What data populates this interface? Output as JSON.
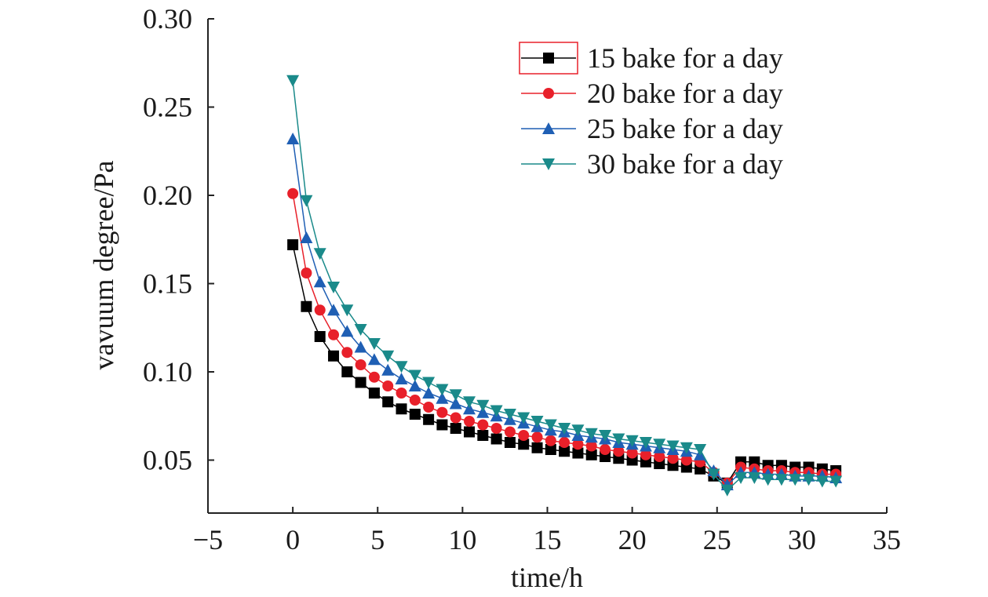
{
  "chart_data": {
    "type": "line",
    "title": "",
    "xlabel": "time/h",
    "ylabel": "vavuum degree/Pa",
    "xlim": [
      -5,
      35
    ],
    "ylim": [
      0.02,
      0.3
    ],
    "xticks": [
      -5,
      0,
      5,
      10,
      15,
      20,
      25,
      30,
      35
    ],
    "xtick_labels": [
      "−5",
      "0",
      "5",
      "10",
      "15",
      "20",
      "25",
      "30",
      "35"
    ],
    "yticks": [
      0.05,
      0.1,
      0.15,
      0.2,
      0.25,
      0.3
    ],
    "ytick_labels": [
      "0.05",
      "0.10",
      "0.15",
      "0.20",
      "0.25",
      "0.30"
    ],
    "grid": false,
    "legend_position": "top-right",
    "x": [
      0,
      0.8,
      1.6,
      2.4,
      3.2,
      4.0,
      4.8,
      5.6,
      6.4,
      7.2,
      8.0,
      8.8,
      9.6,
      10.4,
      11.2,
      12.0,
      12.8,
      13.6,
      14.4,
      15.2,
      16.0,
      16.8,
      17.6,
      18.4,
      19.2,
      20.0,
      20.8,
      21.6,
      22.4,
      23.2,
      24.0,
      24.8,
      25.6,
      26.4,
      27.2,
      28.0,
      28.8,
      29.6,
      30.4,
      31.2,
      32.0
    ],
    "series": [
      {
        "name": "15 bake for a day",
        "marker": "square",
        "color": "#000000",
        "values": [
          0.172,
          0.137,
          0.12,
          0.109,
          0.1,
          0.094,
          0.088,
          0.083,
          0.079,
          0.076,
          0.073,
          0.07,
          0.068,
          0.066,
          0.064,
          0.062,
          0.06,
          0.059,
          0.057,
          0.056,
          0.055,
          0.054,
          0.053,
          0.052,
          0.051,
          0.05,
          0.049,
          0.048,
          0.047,
          0.046,
          0.045,
          0.041,
          0.037,
          0.049,
          0.049,
          0.047,
          0.047,
          0.046,
          0.046,
          0.045,
          0.044
        ]
      },
      {
        "name": "20 bake for a day",
        "marker": "circle",
        "color": "#e8202a",
        "values": [
          0.201,
          0.156,
          0.135,
          0.121,
          0.111,
          0.104,
          0.097,
          0.092,
          0.088,
          0.084,
          0.08,
          0.077,
          0.074,
          0.072,
          0.07,
          0.068,
          0.066,
          0.064,
          0.063,
          0.061,
          0.06,
          0.059,
          0.058,
          0.056,
          0.055,
          0.054,
          0.053,
          0.052,
          0.051,
          0.05,
          0.049,
          0.043,
          0.037,
          0.046,
          0.045,
          0.044,
          0.044,
          0.043,
          0.043,
          0.042,
          0.042
        ]
      },
      {
        "name": "25 bake for a day",
        "marker": "triangle-up",
        "color": "#1f5fb4",
        "values": [
          0.232,
          0.176,
          0.151,
          0.135,
          0.123,
          0.114,
          0.107,
          0.101,
          0.096,
          0.092,
          0.088,
          0.085,
          0.082,
          0.079,
          0.077,
          0.075,
          0.073,
          0.071,
          0.069,
          0.067,
          0.066,
          0.064,
          0.063,
          0.062,
          0.06,
          0.059,
          0.058,
          0.057,
          0.056,
          0.055,
          0.053,
          0.044,
          0.036,
          0.043,
          0.043,
          0.042,
          0.042,
          0.041,
          0.041,
          0.041,
          0.04
        ]
      },
      {
        "name": "30 bake for a day",
        "marker": "triangle-down",
        "color": "#1a8a8a",
        "values": [
          0.265,
          0.197,
          0.167,
          0.148,
          0.135,
          0.124,
          0.116,
          0.109,
          0.103,
          0.098,
          0.094,
          0.09,
          0.087,
          0.083,
          0.081,
          0.078,
          0.076,
          0.074,
          0.072,
          0.07,
          0.068,
          0.067,
          0.065,
          0.064,
          0.062,
          0.061,
          0.06,
          0.059,
          0.058,
          0.057,
          0.056,
          0.042,
          0.033,
          0.04,
          0.04,
          0.039,
          0.039,
          0.039,
          0.039,
          0.038,
          0.038
        ]
      }
    ]
  }
}
